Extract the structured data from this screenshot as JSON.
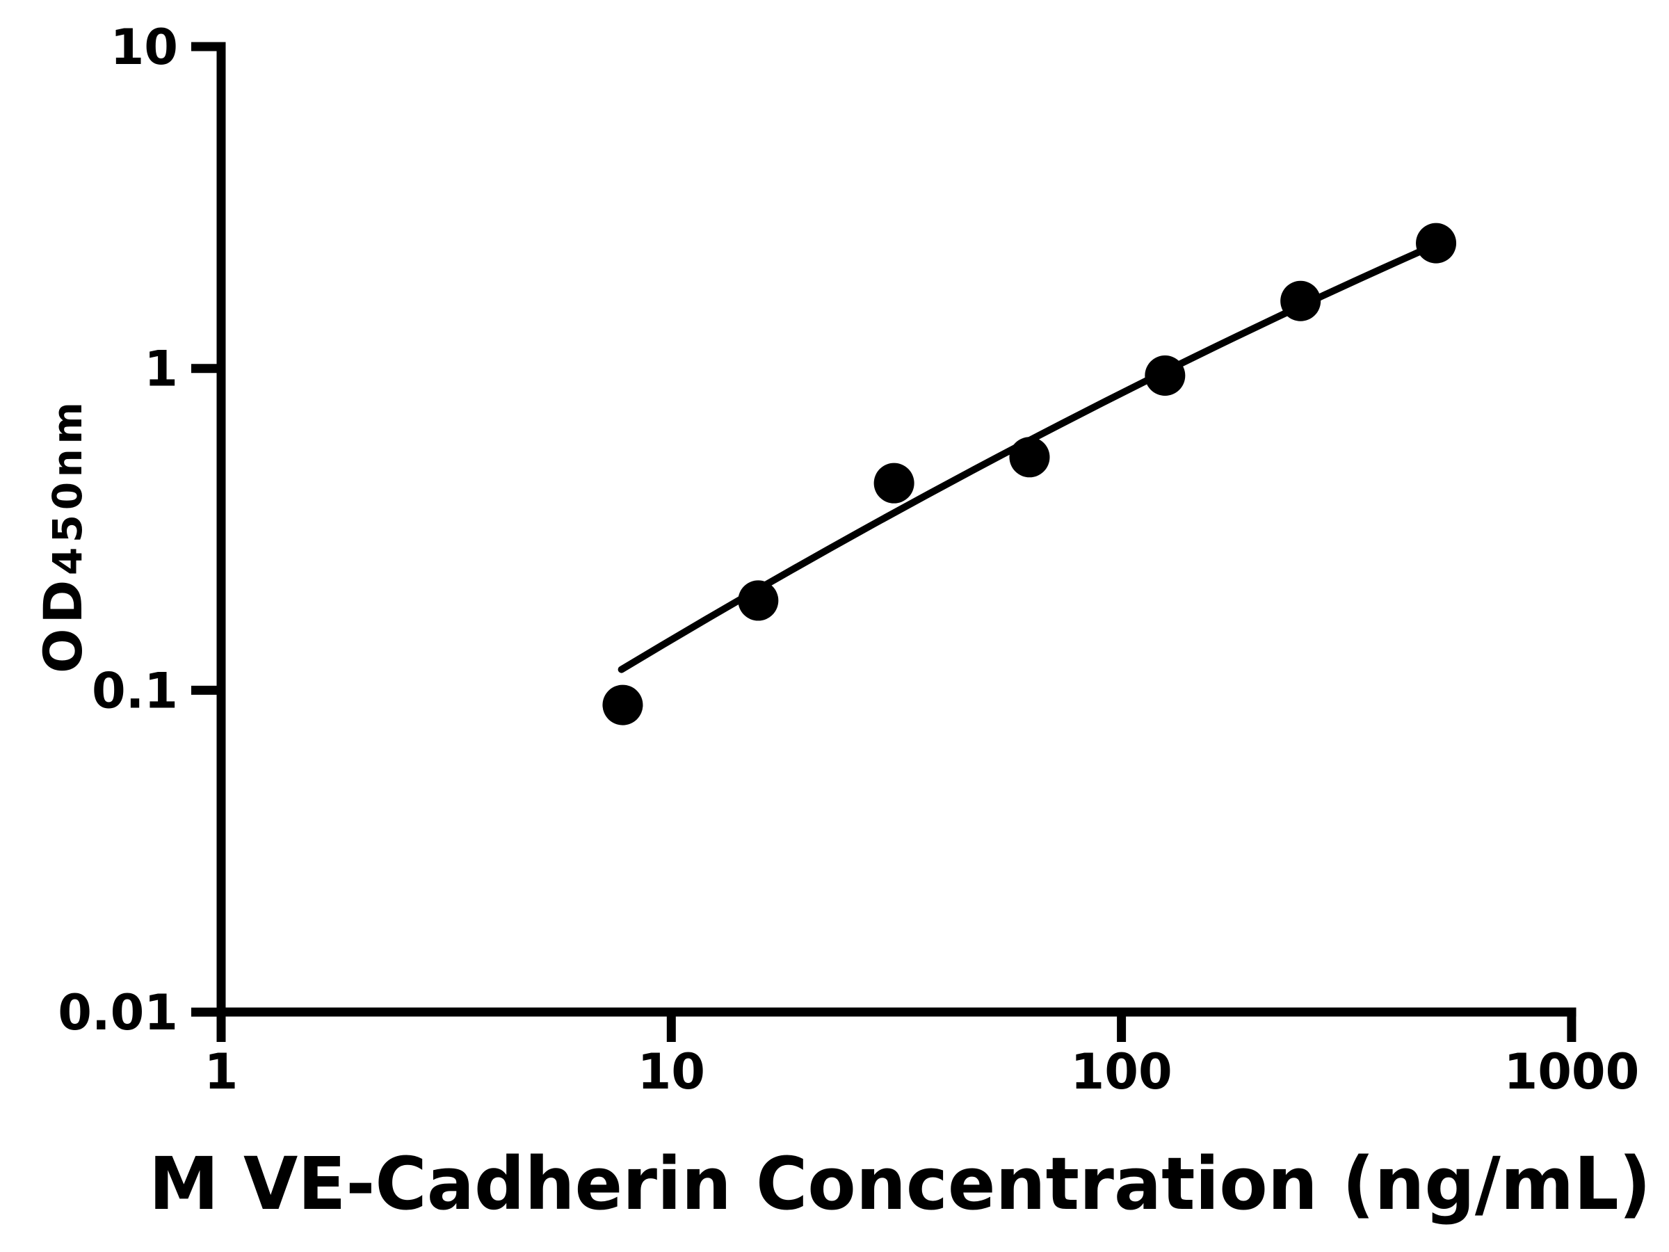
{
  "figure": {
    "background_color": "#ffffff",
    "ink_color": "#000000"
  },
  "chart_data": {
    "type": "scatter",
    "title": "",
    "xlabel": "M VE-Cadherin Concentration (ng/mL)",
    "ylabel_main": "OD",
    "ylabel_sub": "450nm",
    "x_scale": "log",
    "y_scale": "log",
    "xlim": [
      1,
      1000
    ],
    "ylim": [
      0.01,
      10
    ],
    "x_ticks": [
      1,
      10,
      100,
      1000
    ],
    "x_tick_labels": [
      "1",
      "10",
      "100",
      "1000"
    ],
    "y_ticks": [
      10,
      1,
      0.1,
      0.01
    ],
    "y_tick_labels": [
      "10",
      "1",
      "0.1",
      "0.01"
    ],
    "grid": false,
    "legend": "none",
    "series": [
      {
        "name": "standard-curve-points",
        "marker": "filled-circle",
        "color": "#000000",
        "x": [
          7.8,
          15.6,
          31.25,
          62.5,
          125,
          250,
          500
        ],
        "y": [
          0.09,
          0.19,
          0.44,
          0.53,
          0.95,
          1.62,
          2.45
        ]
      }
    ],
    "fit_line": {
      "name": "fitted-standard-curve",
      "color": "#000000",
      "anchors_x": [
        7.75,
        62.8,
        504
      ],
      "anchors_y": [
        0.116,
        0.6,
        2.44
      ]
    }
  }
}
